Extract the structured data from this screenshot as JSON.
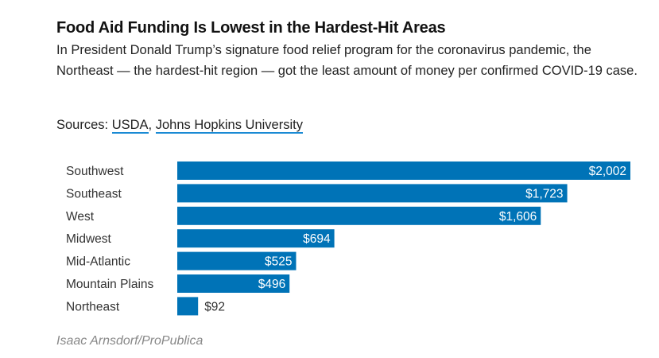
{
  "header": {
    "title": "Food Aid Funding Is Lowest in the Hardest-Hit Areas",
    "subtitle": "In President Donald Trump’s signature food relief program for the coronavirus pandemic, the Northeast — the hardest-hit region — got the least amount of money per confirmed COVID-19 case.",
    "sources_label": "Sources: ",
    "sources": [
      "USDA",
      "Johns Hopkins University"
    ],
    "sources_sep": ", "
  },
  "credit": "Isaac Arnsdorf/ProPublica",
  "colors": {
    "bar": "#0073b7",
    "label_inside": "#ffffff",
    "label_outside": "#333333",
    "link_underline": "#1a8ad4"
  },
  "chart_data": {
    "type": "bar",
    "orientation": "horizontal",
    "categories": [
      "Southwest",
      "Southeast",
      "West",
      "Midwest",
      "Mid-Atlantic",
      "Mountain Plains",
      "Northeast"
    ],
    "values": [
      2002,
      1723,
      1606,
      694,
      525,
      496,
      92
    ],
    "data_labels": [
      "$2,002",
      "$1,723",
      "$1,606",
      "$694",
      "$525",
      "$496",
      "$92"
    ],
    "xlim": [
      0,
      2002
    ],
    "grid": false,
    "axes_visible": false
  }
}
